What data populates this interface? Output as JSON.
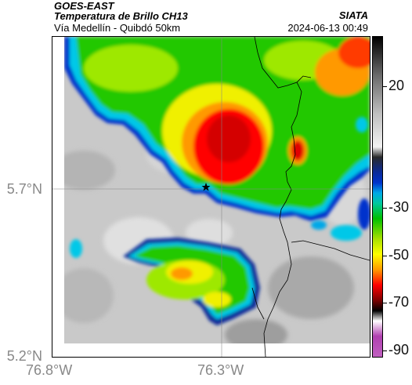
{
  "header": {
    "source": "GOES-EAST",
    "product": "Temperatura de Brillo CH13",
    "region": "Vía Medellín - Quibdó 50km",
    "organization": "SIATA",
    "datetime": "2024-06-13 00:49"
  },
  "axes": {
    "lat_labels": [
      "5.7°N",
      "5.2°N"
    ],
    "lon_labels": [
      "76.8°W",
      "76.3°W"
    ]
  },
  "colorbar": {
    "tick_labels": [
      "20",
      "-30",
      "-50",
      "-70",
      "-90"
    ],
    "stops": [
      {
        "value": 35,
        "color": "#000000"
      },
      {
        "value": 20,
        "color": "#6a6a6a"
      },
      {
        "value": 5,
        "color": "#bfbfbf"
      },
      {
        "value": -8,
        "color": "#f2f2f2"
      },
      {
        "value": -12,
        "color": "#2a2a2a"
      },
      {
        "value": -18,
        "color": "#0a2a9a"
      },
      {
        "value": -22,
        "color": "#0033cc"
      },
      {
        "value": -26,
        "color": "#00a8e8"
      },
      {
        "value": -30,
        "color": "#00c8a0"
      },
      {
        "value": -36,
        "color": "#00c000"
      },
      {
        "value": -44,
        "color": "#a8e000"
      },
      {
        "value": -50,
        "color": "#ffff00"
      },
      {
        "value": -56,
        "color": "#ff9900"
      },
      {
        "value": -62,
        "color": "#ff0000"
      },
      {
        "value": -68,
        "color": "#7a0000"
      },
      {
        "value": -72,
        "color": "#000000"
      },
      {
        "value": -76,
        "color": "#ffffff"
      },
      {
        "value": -82,
        "color": "#b040b0"
      },
      {
        "value": -90,
        "color": "#c060c0"
      }
    ]
  },
  "marker": {
    "icon": "star-icon"
  },
  "colors": {
    "clear_sky": "#c8c8c8",
    "cloud_edge": "#0033cc",
    "cyan": "#00c8e8",
    "green": "#22c800",
    "yellow": "#f0f000",
    "orange": "#ff9900",
    "red": "#ff0000",
    "dark_red": "#8a0000"
  }
}
